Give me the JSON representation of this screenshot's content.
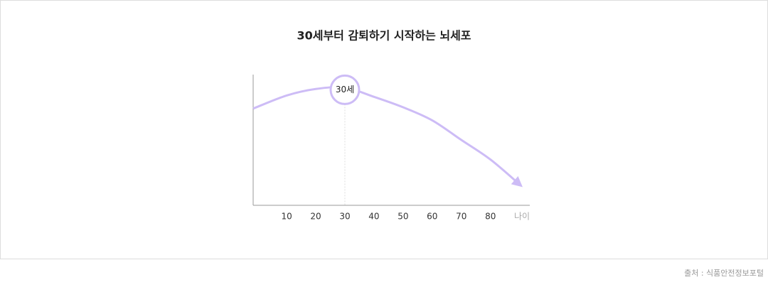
{
  "chart_data": {
    "type": "line",
    "title": "30세부터 감퇴하기 시작하는 뇌세포",
    "x": [
      -1.5,
      10,
      20,
      30,
      40,
      50,
      60,
      70,
      80,
      90.5
    ],
    "series": [
      {
        "color": "#cdbcf6",
        "values": [
          74,
          84,
          89,
          90,
          83,
          75,
          65,
          50,
          35,
          15
        ]
      }
    ],
    "xlim": [
      -1.5,
      93.5
    ],
    "xticks": [
      10,
      20,
      30,
      40,
      50,
      60,
      70,
      80
    ],
    "ylim": [
      0,
      100
    ],
    "x_label": "나이",
    "annotation": {
      "x": 30,
      "text": "30세"
    },
    "source": "출처 : 식품안전정보포털"
  }
}
